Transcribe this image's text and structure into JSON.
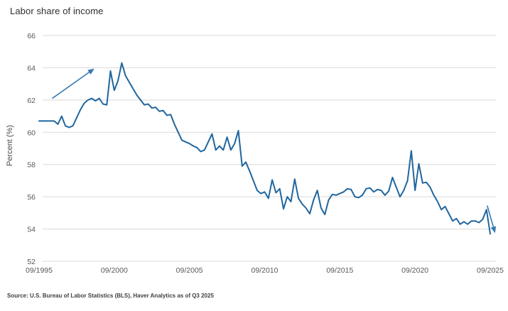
{
  "page": {
    "title": "Labor share of income",
    "source_note": "Source: U.S. Bureau of Labor Statistics (BLS), Haver Analytics as of Q3 2025"
  },
  "chart_data": {
    "type": "line",
    "title": "Labor share of income",
    "xlabel": "",
    "ylabel": "Percent (%)",
    "ylim": [
      52,
      66
    ],
    "yticks": [
      66,
      64,
      62,
      60,
      58,
      56,
      54,
      52
    ],
    "x_tick_labels": [
      "09/1995",
      "09/2000",
      "09/2005",
      "09/2010",
      "09/2015",
      "09/2020",
      "09/2025"
    ],
    "x_tick_positions": [
      0,
      20,
      40,
      60,
      80,
      100,
      120
    ],
    "x_frequency": "quarterly, index 0 = 09/1995, index 120 = 09/2025",
    "grid": true,
    "legend_position": "none",
    "line_color": "#20669e",
    "grid_color": "#d9d9d9",
    "series": [
      {
        "name": "Labor share of income (%)",
        "values": [
          60.7,
          60.7,
          60.7,
          60.7,
          60.7,
          60.5,
          61.0,
          60.4,
          60.3,
          60.4,
          60.9,
          61.4,
          61.8,
          62.0,
          62.1,
          61.95,
          62.1,
          61.75,
          61.7,
          63.8,
          62.6,
          63.2,
          64.3,
          63.5,
          63.1,
          62.7,
          62.3,
          62.0,
          61.7,
          61.75,
          61.5,
          61.55,
          61.3,
          61.35,
          61.05,
          61.1,
          60.5,
          60.0,
          59.5,
          59.4,
          59.3,
          59.15,
          59.05,
          58.8,
          58.9,
          59.4,
          59.9,
          58.9,
          59.15,
          58.9,
          59.7,
          58.9,
          59.3,
          60.1,
          57.9,
          58.15,
          57.6,
          57.0,
          56.4,
          56.2,
          56.3,
          55.9,
          57.05,
          56.25,
          56.5,
          55.25,
          56.0,
          55.7,
          57.1,
          55.9,
          55.55,
          55.3,
          54.95,
          55.8,
          56.4,
          55.3,
          54.9,
          55.8,
          56.15,
          56.1,
          56.2,
          56.3,
          56.5,
          56.45,
          56.0,
          55.95,
          56.1,
          56.5,
          56.55,
          56.3,
          56.45,
          56.4,
          56.1,
          56.35,
          57.2,
          56.6,
          56.0,
          56.4,
          57.0,
          58.85,
          56.4,
          58.05,
          56.85,
          56.9,
          56.6,
          56.1,
          55.7,
          55.2,
          55.4,
          54.95,
          54.5,
          54.65,
          54.3,
          54.45,
          54.3,
          54.5,
          54.5,
          54.4,
          54.6,
          55.2,
          53.7
        ]
      }
    ],
    "annotations": [
      {
        "type": "arrow",
        "direction": "up-right",
        "color": "#3779b0",
        "from": {
          "x": 3.5,
          "y": 62.1
        },
        "to": {
          "x": 14.7,
          "y": 63.95
        }
      },
      {
        "type": "arrow",
        "direction": "down-right",
        "color": "#3779b0",
        "from": {
          "x": 119.2,
          "y": 55.45
        },
        "to": {
          "x": 121.3,
          "y": 53.75
        }
      }
    ]
  }
}
